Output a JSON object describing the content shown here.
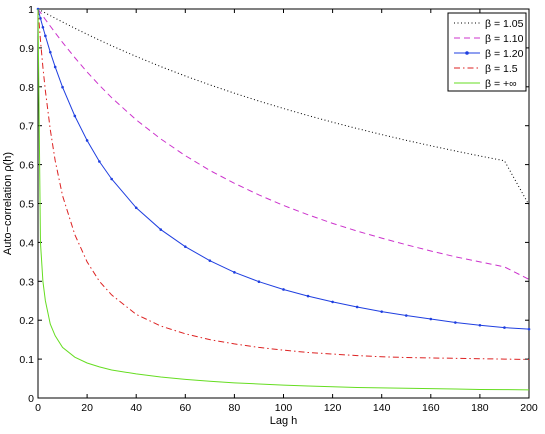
{
  "chart_data": {
    "type": "line",
    "title": "",
    "xlabel": "Lag h",
    "ylabel": "Auto−correlation ρ(h)",
    "xlim": [
      0,
      200
    ],
    "ylim": [
      0,
      1
    ],
    "x_ticks": [
      "0",
      "20",
      "40",
      "60",
      "80",
      "100",
      "120",
      "140",
      "160",
      "180",
      "200"
    ],
    "y_ticks": [
      "0",
      "0.1",
      "0.2",
      "0.3",
      "0.4",
      "0.5",
      "0.6",
      "0.7",
      "0.8",
      "0.9",
      "1"
    ],
    "grid": false,
    "legend_position": "top-right",
    "x": [
      0,
      1,
      2,
      3,
      5,
      7,
      10,
      15,
      20,
      25,
      30,
      40,
      50,
      60,
      70,
      80,
      90,
      100,
      110,
      120,
      130,
      140,
      150,
      160,
      170,
      180,
      190,
      200
    ],
    "series": [
      {
        "name": "β = 1.05",
        "color": "#000000",
        "style": "dotted",
        "marker": "none",
        "values": [
          1.0,
          0.9966,
          0.9931,
          0.9897,
          0.983,
          0.9764,
          0.9665,
          0.9506,
          0.9351,
          0.9201,
          0.9055,
          0.8779,
          0.852,
          0.8278,
          0.805,
          0.7836,
          0.7633,
          0.7442,
          0.7261,
          0.709,
          0.6927,
          0.6772,
          0.6624,
          0.6484,
          0.635,
          0.6221,
          0.6099,
          0.496
        ]
      },
      {
        "name": "β = 1.10",
        "color": "#cc33cc",
        "style": "dashed",
        "marker": "none",
        "values": [
          1.0,
          0.991,
          0.982,
          0.973,
          0.956,
          0.939,
          0.914,
          0.875,
          0.838,
          0.804,
          0.772,
          0.715,
          0.666,
          0.623,
          0.585,
          0.552,
          0.522,
          0.495,
          0.471,
          0.449,
          0.429,
          0.411,
          0.394,
          0.378,
          0.363,
          0.35,
          0.337,
          0.305
        ]
      },
      {
        "name": "β = 1.20",
        "color": "#1f3fe0",
        "style": "solid",
        "marker": "dot",
        "values": [
          1.0,
          0.976,
          0.953,
          0.931,
          0.889,
          0.851,
          0.799,
          0.725,
          0.662,
          0.608,
          0.563,
          0.489,
          0.433,
          0.389,
          0.353,
          0.323,
          0.299,
          0.279,
          0.262,
          0.247,
          0.234,
          0.222,
          0.212,
          0.203,
          0.194,
          0.187,
          0.181,
          0.177
        ]
      },
      {
        "name": "β = 1.5",
        "color": "#dd2222",
        "style": "dashdot",
        "marker": "none",
        "values": [
          1.0,
          0.92,
          0.85,
          0.79,
          0.69,
          0.61,
          0.52,
          0.42,
          0.35,
          0.3,
          0.265,
          0.215,
          0.185,
          0.165,
          0.15,
          0.139,
          0.13,
          0.123,
          0.117,
          0.113,
          0.109,
          0.106,
          0.104,
          0.103,
          0.102,
          0.101,
          0.1,
          0.099
        ]
      },
      {
        "name": "β = +∞",
        "color": "#66dd22",
        "style": "solid",
        "marker": "none",
        "values": [
          1.0,
          0.4,
          0.3,
          0.25,
          0.19,
          0.16,
          0.13,
          0.105,
          0.09,
          0.08,
          0.072,
          0.062,
          0.054,
          0.048,
          0.043,
          0.039,
          0.036,
          0.033,
          0.031,
          0.029,
          0.027,
          0.026,
          0.025,
          0.024,
          0.023,
          0.022,
          0.0215,
          0.021
        ]
      }
    ]
  }
}
